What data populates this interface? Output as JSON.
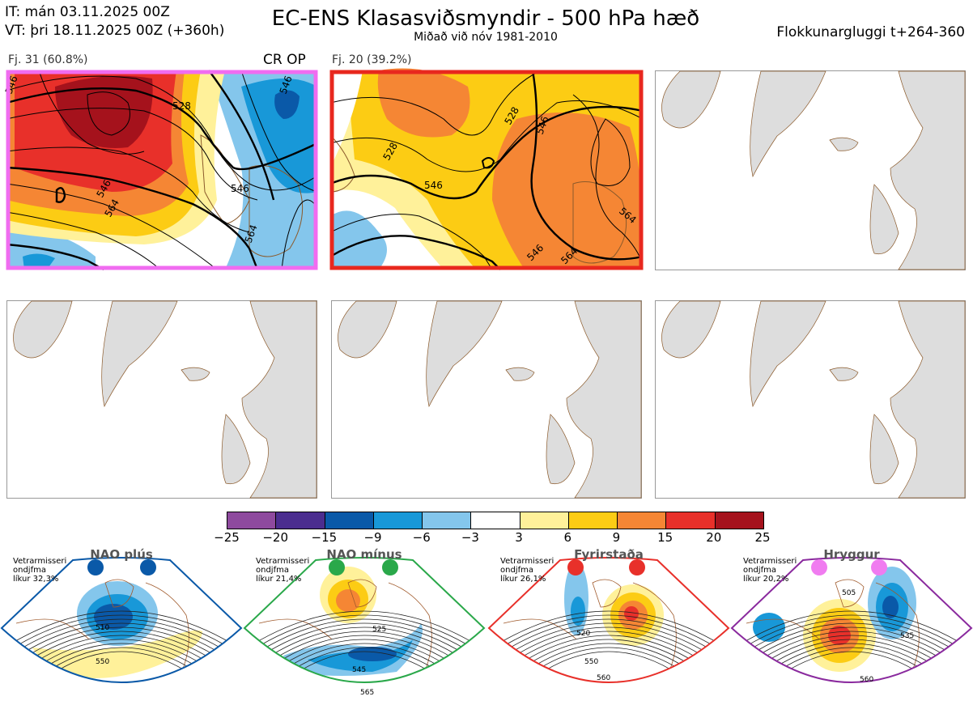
{
  "header": {
    "init_time": "IT: mán 03.11.2025 00Z",
    "valid_time": "VT: þri 18.11.2025 00Z  (+360h)",
    "title": "EC-ENS Klasasviðsmyndir - 500 hPa hæð",
    "subtitle": "Miðað við nóv 1981-2010",
    "window": "Flokkunargluggi t+264-360"
  },
  "clusters": [
    {
      "label": "Fj. 31 (60.8%)",
      "tag": "CR OP",
      "border_color": "#f06cf0",
      "contour_labels": [
        "546",
        "528",
        "546",
        "564",
        "546",
        "564",
        "546"
      ]
    },
    {
      "label": "Fj. 20 (39.2%)",
      "tag": "",
      "border_color": "#e8281e",
      "contour_labels": [
        "528",
        "528",
        "546",
        "546",
        "564",
        "546",
        "564"
      ]
    }
  ],
  "colorbar": {
    "ticks": [
      "−25",
      "−20",
      "−15",
      "−9",
      "−6",
      "−3",
      "3",
      "6",
      "9",
      "15",
      "20",
      "25"
    ],
    "colors": [
      "#8e4a9e",
      "#4b2d8f",
      "#0a59a8",
      "#1898d8",
      "#84c6ec",
      "#ffffff",
      "#fff19a",
      "#fccc14",
      "#f58634",
      "#e8302a",
      "#a5121c"
    ]
  },
  "regimes": [
    {
      "name": "NAO plús",
      "note": [
        "Vetrarmisseri",
        "ondjfma",
        "líkur 32,3%"
      ],
      "color": "#0a59a8",
      "dot_color": "#0a59a8",
      "contour_labels": [
        "510",
        "550"
      ]
    },
    {
      "name": "NAO mínus",
      "note": [
        "Vetrarmisseri",
        "ondjfma",
        "líkur 21,4%"
      ],
      "color": "#2aa84a",
      "dot_color": "#2aa84a",
      "contour_labels": [
        "525",
        "545",
        "565"
      ]
    },
    {
      "name": "Fyrirstaða",
      "note": [
        "Vetrarmisseri",
        "ondjfma",
        "líkur 26,1%"
      ],
      "color": "#e8302a",
      "dot_color": "#e8302a",
      "contour_labels": [
        "520",
        "550",
        "560"
      ]
    },
    {
      "name": "Hryggur",
      "note": [
        "Vetrarmisseri",
        "ondjfma",
        "líkur 20,2%"
      ],
      "color": "#8a2a9e",
      "dot_color": "#f07cf0",
      "contour_labels": [
        "505",
        "535",
        "560"
      ]
    }
  ]
}
